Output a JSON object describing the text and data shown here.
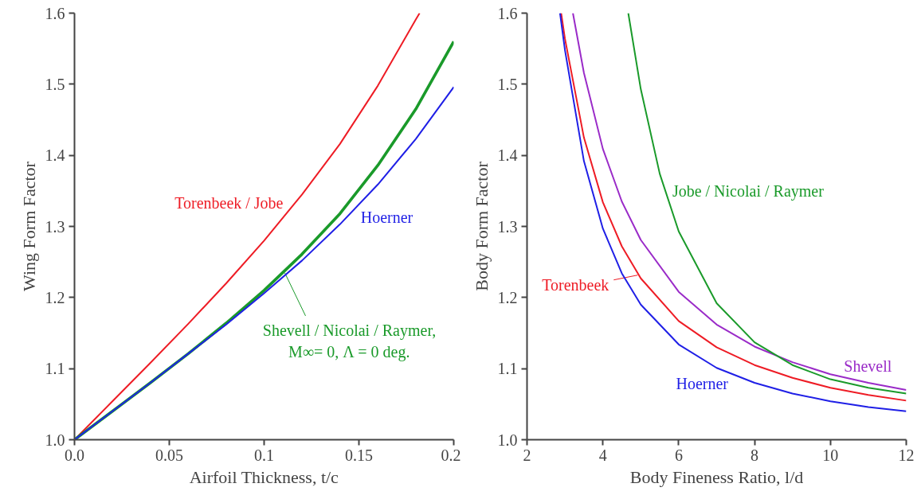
{
  "chart_data": [
    {
      "type": "line",
      "xlabel": "Airfoil Thickness, t/c",
      "ylabel": "Wing Form Factor",
      "xlim": [
        0,
        0.2
      ],
      "ylim": [
        1.0,
        1.6
      ],
      "xticks": [
        {
          "value": 0,
          "label": "0.0"
        },
        0.05,
        0.1,
        0.15,
        0.2
      ],
      "yticks": [
        {
          "value": 1.0,
          "label": "1.0"
        },
        1.1,
        1.2,
        1.3,
        1.4,
        1.5,
        1.6
      ],
      "grid": false,
      "marker": "none",
      "line_style": "solid",
      "series": [
        {
          "name": "Torenbeek / Jobe",
          "color": "#ee1c25",
          "x": [
            0,
            0.02,
            0.04,
            0.06,
            0.08,
            0.1,
            0.12,
            0.14,
            0.16,
            0.18,
            0.182
          ],
          "values": [
            1.0,
            1.054,
            1.108,
            1.163,
            1.22,
            1.28,
            1.345,
            1.416,
            1.498,
            1.591,
            1.6
          ]
        },
        {
          "name": "Shevell / Nicolai / Raymer,\nM∞= 0, Λ = 0 deg.",
          "color": "#1a9a2a",
          "x": [
            0,
            0.02,
            0.04,
            0.06,
            0.08,
            0.1,
            0.12,
            0.14,
            0.16,
            0.18,
            0.2
          ],
          "values": [
            1.0,
            1.04,
            1.08,
            1.121,
            1.164,
            1.21,
            1.261,
            1.318,
            1.386,
            1.465,
            1.56
          ]
        },
        {
          "name": "Hoerner",
          "color": "#1f1fe6",
          "x": [
            0,
            0.02,
            0.04,
            0.06,
            0.08,
            0.1,
            0.12,
            0.14,
            0.16,
            0.18,
            0.2
          ],
          "values": [
            1.0,
            1.04,
            1.08,
            1.121,
            1.162,
            1.206,
            1.252,
            1.303,
            1.359,
            1.423,
            1.496
          ]
        }
      ]
    },
    {
      "type": "line",
      "xlabel": "Body Fineness Ratio, l/d",
      "ylabel": "Body Form Factor",
      "xlim": [
        2,
        12
      ],
      "ylim": [
        1.0,
        1.6
      ],
      "xticks": [
        2,
        4,
        6,
        8,
        10,
        12
      ],
      "yticks": [
        {
          "value": 1.0,
          "label": "1.0"
        },
        1.1,
        1.2,
        1.3,
        1.4,
        1.5,
        1.6
      ],
      "grid": false,
      "marker": "none",
      "line_style": "solid",
      "series": [
        {
          "name": "Torenbeek",
          "color": "#ee1c25",
          "x": [
            2.9,
            3,
            3.5,
            4,
            4.5,
            5,
            6,
            7,
            8,
            9,
            10,
            11,
            12
          ],
          "values": [
            1.6,
            1.564,
            1.425,
            1.334,
            1.272,
            1.227,
            1.167,
            1.13,
            1.105,
            1.087,
            1.073,
            1.063,
            1.055
          ]
        },
        {
          "name": "Hoerner",
          "color": "#1f1fe6",
          "x": [
            2.87,
            3,
            3.5,
            4,
            4.5,
            5,
            6,
            7,
            8,
            9,
            10,
            11,
            12
          ],
          "values": [
            1.6,
            1.548,
            1.392,
            1.297,
            1.234,
            1.19,
            1.134,
            1.101,
            1.08,
            1.065,
            1.054,
            1.046,
            1.04
          ]
        },
        {
          "name": "Shevell",
          "color": "#9a2bc8",
          "x": [
            3.21,
            3.5,
            4,
            4.5,
            5,
            6,
            7,
            8,
            9,
            10,
            11,
            12
          ],
          "values": [
            1.6,
            1.516,
            1.409,
            1.335,
            1.281,
            1.208,
            1.162,
            1.131,
            1.109,
            1.092,
            1.08,
            1.07
          ]
        },
        {
          "name": "Jobe / Nicolai / Raymer",
          "color": "#1a9a2a",
          "x": [
            4.67,
            5,
            5.5,
            6,
            7,
            8,
            9,
            10,
            11,
            12
          ],
          "values": [
            1.6,
            1.493,
            1.374,
            1.293,
            1.192,
            1.137,
            1.105,
            1.085,
            1.073,
            1.065
          ]
        }
      ]
    }
  ]
}
